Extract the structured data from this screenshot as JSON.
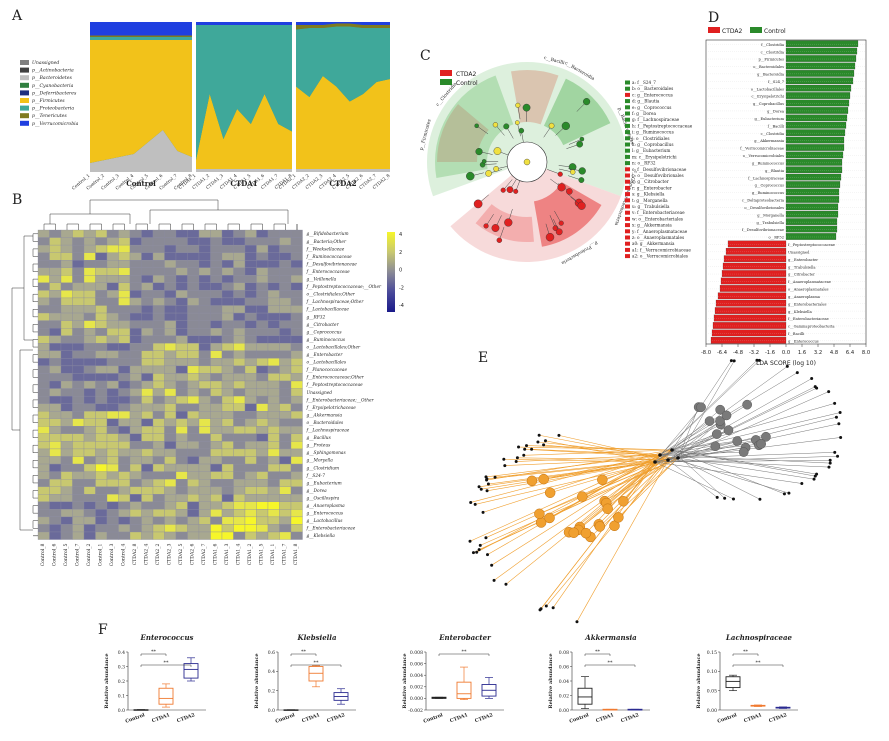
{
  "panels": {
    "A": {
      "letter": "A",
      "legend": [
        {
          "label": "Unassigned",
          "color": "#7f7f7f"
        },
        {
          "label": "p__Actinobacteria",
          "color": "#404040"
        },
        {
          "label": "p__Bacteroidetes",
          "color": "#bfbfbf"
        },
        {
          "label": "p__Cyanobacteria",
          "color": "#2f7f3f"
        },
        {
          "label": "p__Deferribacteres",
          "color": "#1f2f7f"
        },
        {
          "label": "p__Firmicutes",
          "color": "#f2c21a"
        },
        {
          "label": "p__Proteobacteria",
          "color": "#3fa89a"
        },
        {
          "label": "p__Tenericutes",
          "color": "#7f7a1f"
        },
        {
          "label": "p__Verrucomicrobia",
          "color": "#1f3fe0"
        }
      ],
      "groups": [
        {
          "name": "Control",
          "samples": [
            "Control_1",
            "Control_2",
            "Control_3",
            "Control_4",
            "Control_5",
            "Control_6",
            "Control_7",
            "Control_8"
          ]
        },
        {
          "name": "CTDA1",
          "samples": [
            "CTDA1_1",
            "CTDA1_2",
            "CTDA1_3",
            "CTDA1_4",
            "CTDA1_5",
            "CTDA1_6",
            "CTDA1_7",
            "CTDA1_8"
          ]
        },
        {
          "name": "CTDA2",
          "samples": [
            "CTDA2_1",
            "CTDA2_2",
            "CTDA2_3",
            "CTDA2_4",
            "CTDA2_5",
            "CTDA2_6",
            "CTDA2_7",
            "CTDA2_8"
          ]
        }
      ]
    },
    "B": {
      "letter": "B",
      "rows": [
        "g__Bifidobacterium",
        "g__Bacteria;Other",
        "f__Weeksellaceae",
        "f__Ruminococcaceae",
        "f__Desulfovibrionaceae",
        "f__Enterococcaceae",
        "g__Veillonella",
        "f__Peptostreptococcaceae;__Other",
        "o__Clostridiales;Other",
        "f__Lachnospiraceae;Other",
        "f__Lactobacillaceae",
        "g__RF32",
        "g__Citrobacter",
        "g__Coprococcus",
        "g__Ruminococcus",
        "o__Lactobacillales;Other",
        "g__Enterobacter",
        "o__Lactobacillales",
        "f__Planococcaceae",
        "f__Enterococcaceae;Other",
        "f__Peptostreptococcaceae",
        "Unassigned",
        "f__Enterobacteriaceae;__Other",
        "f__Erysipelotrichaceae",
        "g__Akkermansia",
        "o__Bacteroidales",
        "f__Lachnospiraceae",
        "g__Bacillus",
        "g__Proteus",
        "g__Sphingomonas",
        "g__Moryella",
        "g__Clostridium",
        "f__S24-7",
        "g__Eubacterium",
        "g__Dorea",
        "g__Oscillospira",
        "g__Anaeroplasma",
        "g__Enterococcus",
        "g__Lactobacillus",
        "f__Enterobacteriaceae",
        "g__Klebsiella"
      ],
      "cols": [
        "Control_8",
        "Control_6",
        "Control_5",
        "Control_7",
        "Control_2",
        "Control_1",
        "Control_3",
        "Control_4",
        "CTDA2_8",
        "CTDA2_4",
        "CTDA2_2",
        "CTDA2_3",
        "CTDA2_5",
        "CTDA2_6",
        "CTDA2_7",
        "CTDA1_6",
        "CTDA1_3",
        "CTDA1_4",
        "CTDA1_2",
        "CTDA1_5",
        "CTDA1_1",
        "CTDA1_7",
        "CTDA1_8"
      ],
      "scale": [
        "4",
        "2",
        "0",
        "-2",
        "-4"
      ]
    },
    "C": {
      "letter": "C",
      "legend": [
        {
          "label": "CTDA2",
          "color": "#e02020"
        },
        {
          "label": "Control",
          "color": "#2a8a2a"
        }
      ],
      "keys": [
        "a: f__S24_7",
        "b: o__Bacteroidales",
        "c: g__Enterococcus",
        "d: g__Blautia",
        "e: g__Coprococcus",
        "f: g__Dorea",
        "g: f__Lachnospiraceae",
        "h: f__Peptostreptococcaceae",
        "i: g__Ruminococcus",
        "j: o__Clostridiales",
        "k: g__Coprobacillus",
        "l: g__Eubacterium",
        "m: c__Erysipelotrichi",
        "n: o__RF32",
        "o: f__Desulfovibrionaceae",
        "p: o__Desulfovibrionales",
        "q: g__Citrobacter",
        "r: g__Enterobacter",
        "s: g__Klebsiella",
        "t: g__Morganella",
        "u: g__Trabulsiella",
        "v: f__Enterobacteriaceae",
        "w: o__Enterobacteriales",
        "x: g__Akkermansia",
        "y: f__Anaeroplasmataceae",
        "z: o__Anaeroplasmatales",
        "a0: g__Akkermansia",
        "a1: f__Verrucomicrobiaceae",
        "a2: o__Verrucomicrobiales"
      ],
      "outer_labels": [
        "c__Bacilli",
        "p__Bacteroidetes",
        "c__Bacteroidia",
        "p__Firmicutes",
        "c__Clostridia",
        "p__Proteobacteria",
        "c__Gammaproteobacteria"
      ]
    },
    "D": {
      "letter": "D",
      "legend": [
        {
          "label": "CTDA2",
          "color": "#e02020"
        },
        {
          "label": "Control",
          "color": "#2a8a2a"
        }
      ],
      "xlabel": "LDA SCORE (log 10)",
      "ticks": [
        "-8.0",
        "-6.4",
        "-4.8",
        "-3.2",
        "-1.6",
        "0.0",
        "1.6",
        "3.2",
        "4.8",
        "6.4",
        "8.0"
      ]
    },
    "E": {
      "letter": "E"
    },
    "F": {
      "letter": "F",
      "ylabel": "Relative abundance",
      "groups": [
        "Control",
        "CTDA1",
        "CTDA2"
      ],
      "sig": "**"
    }
  },
  "chart_data": [
    {
      "type": "area",
      "panel": "A",
      "title": "",
      "ylim": [
        0,
        1
      ],
      "x": [
        "Control_1",
        "Control_2",
        "Control_3",
        "Control_4",
        "Control_5",
        "Control_6",
        "Control_7",
        "Control_8",
        "CTDA1_1",
        "CTDA1_2",
        "CTDA1_3",
        "CTDA1_4",
        "CTDA1_5",
        "CTDA1_6",
        "CTDA1_7",
        "CTDA1_8",
        "CTDA2_1",
        "CTDA2_2",
        "CTDA2_3",
        "CTDA2_4",
        "CTDA2_5",
        "CTDA2_6",
        "CTDA2_7",
        "CTDA2_8"
      ],
      "series": [
        {
          "name": "p__Bacteroidetes",
          "values": [
            0.06,
            0.08,
            0.1,
            0.12,
            0.2,
            0.28,
            0.14,
            0.1,
            0.02,
            0.02,
            0.02,
            0.02,
            0.02,
            0.02,
            0.02,
            0.02,
            0.02,
            0.02,
            0.02,
            0.02,
            0.02,
            0.02,
            0.02,
            0.02
          ]
        },
        {
          "name": "p__Firmicutes",
          "values": [
            0.82,
            0.8,
            0.78,
            0.76,
            0.68,
            0.6,
            0.74,
            0.78,
            0.06,
            0.5,
            0.2,
            0.4,
            0.3,
            0.5,
            0.3,
            0.25,
            0.55,
            0.48,
            0.62,
            0.55,
            0.45,
            0.5,
            0.58,
            0.6
          ]
        },
        {
          "name": "p__Proteobacteria",
          "values": [
            0.02,
            0.02,
            0.02,
            0.02,
            0.02,
            0.02,
            0.02,
            0.02,
            0.9,
            0.46,
            0.76,
            0.56,
            0.66,
            0.46,
            0.66,
            0.71,
            0.38,
            0.46,
            0.32,
            0.4,
            0.5,
            0.44,
            0.36,
            0.34
          ]
        },
        {
          "name": "p__Tenericutes",
          "values": [
            0.01,
            0.01,
            0.01,
            0.01,
            0.01,
            0.01,
            0.01,
            0.01,
            0.0,
            0.0,
            0.0,
            0.0,
            0.0,
            0.0,
            0.0,
            0.0,
            0.03,
            0.02,
            0.02,
            0.02,
            0.02,
            0.02,
            0.02,
            0.02
          ]
        },
        {
          "name": "p__Verrucomicrobia",
          "values": [
            0.09,
            0.09,
            0.09,
            0.09,
            0.09,
            0.09,
            0.09,
            0.09,
            0.02,
            0.02,
            0.02,
            0.02,
            0.02,
            0.02,
            0.02,
            0.02,
            0.02,
            0.02,
            0.02,
            0.01,
            0.01,
            0.02,
            0.02,
            0.02
          ]
        }
      ]
    },
    {
      "type": "bar",
      "panel": "D",
      "title": "",
      "xlabel": "LDA SCORE (log 10)",
      "xlim": [
        -8,
        8
      ],
      "categories": [
        "f__Clostridia",
        "c__Clostridia",
        "p__Firmicutes",
        "o__Bacteroidales",
        "g__Bacteroidia",
        "f__S24_7",
        "o__Lactobacillales",
        "c__Erysipelotrichi",
        "g__Coprobacillus",
        "g__Dorea",
        "g__Eubacterium",
        "f__Bacilli",
        "c__Clostridia",
        "g__Akkermansia",
        "f__Verrucomicrobiaceae",
        "o__Verrucomicrobiales",
        "g__Ruminococcus",
        "g__Blautia",
        "f__Lachnospiraceae",
        "g__Coprococcus",
        "g__Ruminococcus",
        "c__Deltaproteobacteria",
        "o__Desulfovibrionales",
        "g__Morganella",
        "g__Trabulsiella",
        "f__Desulfovibrionaceae",
        "o__RF32",
        "f__Peptostreptococcaceae",
        "Unassigned",
        "g__Enterobacter",
        "g__Trabulsiella",
        "g__Citrobacter",
        "f__Anaeroplasmataceae",
        "o__Anaeroplasmatales",
        "g__Anaeroplasma",
        "g__Enterobacteriales",
        "g__Klebsiella",
        "f__Enterobacteriaceae",
        "c__Gammaproteobacteria",
        "f__Bacilli",
        "g__Enterococcus"
      ],
      "values": [
        7.2,
        7.1,
        7.0,
        6.9,
        6.8,
        6.7,
        6.5,
        6.4,
        6.3,
        6.2,
        6.1,
        6.0,
        5.9,
        5.8,
        5.8,
        5.7,
        5.6,
        5.6,
        5.5,
        5.4,
        5.3,
        5.3,
        5.2,
        5.2,
        5.1,
        5.1,
        5.0,
        -5.8,
        -6.0,
        -6.2,
        -6.3,
        -6.4,
        -6.5,
        -6.6,
        -6.8,
        -7.0,
        -7.1,
        -7.2,
        -7.3,
        -7.4,
        -7.5
      ]
    },
    {
      "type": "box",
      "panel": "F",
      "title": "Enterococcus",
      "groups": [
        "Control",
        "CTDA1",
        "CTDA2"
      ],
      "ylim": [
        0,
        0.4
      ],
      "yticks": [
        "0.0",
        "0.1",
        "0.2",
        "0.3",
        "0.4"
      ],
      "boxes": [
        {
          "min": 0.0,
          "q1": 0.0,
          "median": 0.0,
          "q3": 0.002,
          "max": 0.003
        },
        {
          "min": 0.02,
          "q1": 0.04,
          "median": 0.08,
          "q3": 0.15,
          "max": 0.18
        },
        {
          "min": 0.2,
          "q1": 0.22,
          "median": 0.28,
          "q3": 0.32,
          "max": 0.36
        }
      ],
      "colors": [
        "#222222",
        "#f07a30",
        "#2a2a90"
      ],
      "brackets": [
        [
          0,
          1
        ],
        [
          0,
          2
        ]
      ]
    },
    {
      "type": "box",
      "panel": "F",
      "title": "Klebsiella",
      "groups": [
        "Control",
        "CTDA1",
        "CTDA2"
      ],
      "ylim": [
        0,
        0.6
      ],
      "yticks": [
        "0.0",
        "0.2",
        "0.4",
        "0.6"
      ],
      "boxes": [
        {
          "min": 0.0,
          "q1": 0.0,
          "median": 0.0,
          "q3": 0.002,
          "max": 0.003
        },
        {
          "min": 0.24,
          "q1": 0.3,
          "median": 0.38,
          "q3": 0.45,
          "max": 0.46
        },
        {
          "min": 0.06,
          "q1": 0.1,
          "median": 0.14,
          "q3": 0.18,
          "max": 0.22
        }
      ],
      "colors": [
        "#222222",
        "#f07a30",
        "#2a2a90"
      ],
      "brackets": [
        [
          0,
          1
        ],
        [
          0,
          2
        ]
      ]
    },
    {
      "type": "box",
      "panel": "F",
      "title": "Enterobacter",
      "groups": [
        "Control",
        "CTDA1",
        "CTDA2"
      ],
      "ylim": [
        -0.002,
        0.008
      ],
      "yticks": [
        "-0.002",
        "0.000",
        "0.002",
        "0.004",
        "0.006",
        "0.008"
      ],
      "boxes": [
        {
          "min": 0.0,
          "q1": 0.0,
          "median": 0.0001,
          "q3": 0.0002,
          "max": 0.0002
        },
        {
          "min": -0.0002,
          "q1": 0.0,
          "median": 0.0008,
          "q3": 0.0028,
          "max": 0.0054
        },
        {
          "min": 0.0,
          "q1": 0.0004,
          "median": 0.0014,
          "q3": 0.0024,
          "max": 0.0036
        }
      ],
      "colors": [
        "#222222",
        "#f07a30",
        "#2a2a90"
      ],
      "brackets": [
        [
          0,
          2
        ]
      ]
    },
    {
      "type": "box",
      "panel": "F",
      "title": "Akkermansia",
      "groups": [
        "Control",
        "CTDA1",
        "CTDA2"
      ],
      "ylim": [
        0,
        0.08
      ],
      "yticks": [
        "0.00",
        "0.02",
        "0.04",
        "0.06",
        "0.08"
      ],
      "boxes": [
        {
          "min": 0.002,
          "q1": 0.008,
          "median": 0.018,
          "q3": 0.03,
          "max": 0.046
        },
        {
          "min": 0.0,
          "q1": 0.0,
          "median": 0.0,
          "q3": 0.001,
          "max": 0.001
        },
        {
          "min": 0.0,
          "q1": 0.0,
          "median": 0.0,
          "q3": 0.001,
          "max": 0.001
        }
      ],
      "colors": [
        "#222222",
        "#f07a30",
        "#2a2a90"
      ],
      "brackets": [
        [
          0,
          1
        ],
        [
          0,
          2
        ]
      ]
    },
    {
      "type": "box",
      "panel": "F",
      "title": "Lachnospiraceae",
      "groups": [
        "Control",
        "CTDA1",
        "CTDA2"
      ],
      "ylim": [
        0,
        0.15
      ],
      "yticks": [
        "0.00",
        "0.05",
        "0.10",
        "0.15"
      ],
      "boxes": [
        {
          "min": 0.05,
          "q1": 0.058,
          "median": 0.074,
          "q3": 0.086,
          "max": 0.09
        },
        {
          "min": 0.009,
          "q1": 0.01,
          "median": 0.011,
          "q3": 0.012,
          "max": 0.013
        },
        {
          "min": 0.004,
          "q1": 0.005,
          "median": 0.006,
          "q3": 0.007,
          "max": 0.008
        }
      ],
      "colors": [
        "#222222",
        "#f07a30",
        "#2a2a90"
      ],
      "brackets": [
        [
          0,
          1
        ],
        [
          0,
          2
        ]
      ]
    }
  ]
}
